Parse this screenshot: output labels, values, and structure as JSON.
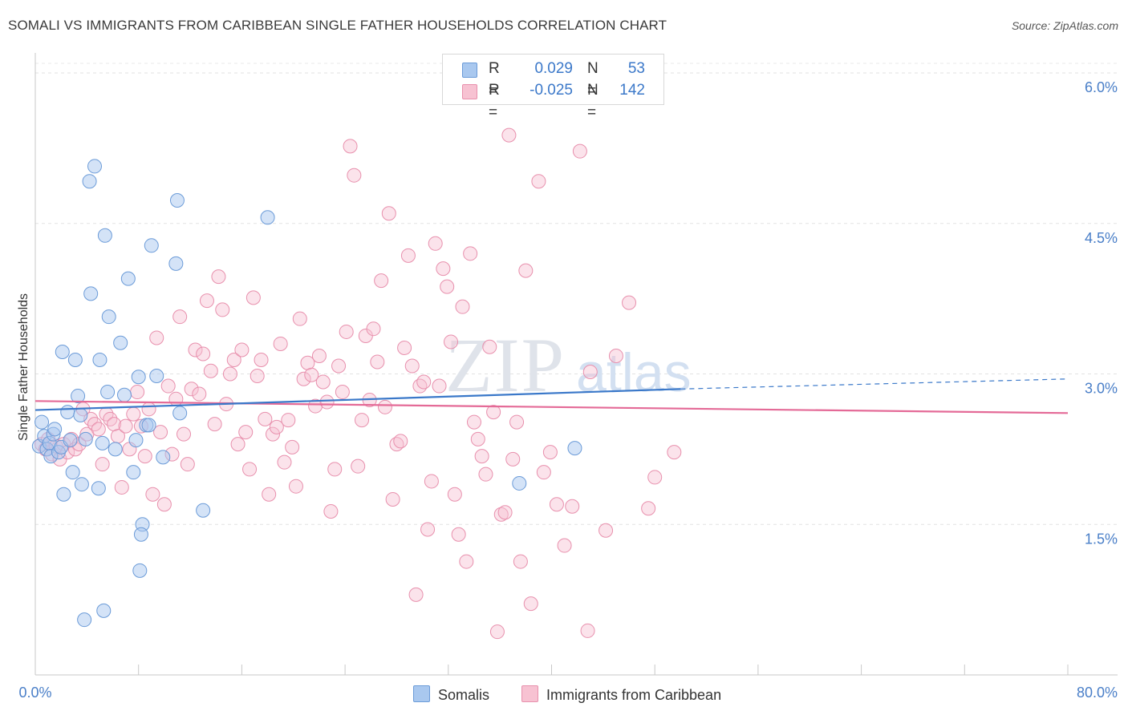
{
  "title": "SOMALI VS IMMIGRANTS FROM CARIBBEAN SINGLE FATHER HOUSEHOLDS CORRELATION CHART",
  "source": "Source: ZipAtlas.com",
  "watermark": {
    "zip": "ZIP",
    "atlas": "atlas"
  },
  "stats": [
    {
      "r_label": "R =",
      "r_value": "0.029",
      "n_label": "N =",
      "n_value": "53"
    },
    {
      "r_label": "R =",
      "r_value": "-0.025",
      "n_label": "N =",
      "n_value": "142"
    }
  ],
  "legend": {
    "series1": "Somalis",
    "series2": "Immigrants from Caribbean"
  },
  "chart_data": {
    "type": "scatter",
    "title": "SOMALI VS IMMIGRANTS FROM CARIBBEAN SINGLE FATHER HOUSEHOLDS CORRELATION CHART",
    "xlabel": "",
    "ylabel": "Single Father Households",
    "xlim": [
      0,
      80
    ],
    "ylim": [
      0,
      6.2
    ],
    "x_tick_labels": [
      "0.0%",
      "80.0%"
    ],
    "y_ticks": [
      1.5,
      3.0,
      4.5,
      6.0
    ],
    "y_tick_labels": [
      "1.5%",
      "3.0%",
      "4.5%",
      "6.0%"
    ],
    "grid": true,
    "legend_position": "bottom-center",
    "colors": {
      "somalis_fill": "#a9c8ef",
      "somalis_stroke": "#6b9bd8",
      "somalis_line": "#3a78c9",
      "carib_fill": "#f7c2d2",
      "carib_stroke": "#e890ad",
      "carib_line": "#e46a97",
      "axis_label_color": "#4a7fc8"
    },
    "series": [
      {
        "name": "Somalis",
        "trend": {
          "x": [
            0,
            50
          ],
          "y": [
            2.64,
            2.85
          ],
          "dashed_extension_to_x": 80,
          "dashed_end_y": 2.95
        },
        "points": [
          [
            0.3,
            2.28
          ],
          [
            0.5,
            2.52
          ],
          [
            0.7,
            2.38
          ],
          [
            0.9,
            2.25
          ],
          [
            1.1,
            2.31
          ],
          [
            1.2,
            2.18
          ],
          [
            1.4,
            2.4
          ],
          [
            1.5,
            2.45
          ],
          [
            1.8,
            2.22
          ],
          [
            2.0,
            2.27
          ],
          [
            2.1,
            3.22
          ],
          [
            2.2,
            1.8
          ],
          [
            2.5,
            2.62
          ],
          [
            2.7,
            2.34
          ],
          [
            2.9,
            2.02
          ],
          [
            3.1,
            3.14
          ],
          [
            3.3,
            2.78
          ],
          [
            3.5,
            2.59
          ],
          [
            3.6,
            1.9
          ],
          [
            3.9,
            2.35
          ],
          [
            4.2,
            4.92
          ],
          [
            4.3,
            3.8
          ],
          [
            4.6,
            5.07
          ],
          [
            4.9,
            1.86
          ],
          [
            5.0,
            3.14
          ],
          [
            5.2,
            2.31
          ],
          [
            5.4,
            4.38
          ],
          [
            5.6,
            2.82
          ],
          [
            5.7,
            3.57
          ],
          [
            6.2,
            2.25
          ],
          [
            6.6,
            3.31
          ],
          [
            6.9,
            2.79
          ],
          [
            7.2,
            3.95
          ],
          [
            7.6,
            2.02
          ],
          [
            7.8,
            2.34
          ],
          [
            8.0,
            2.97
          ],
          [
            8.3,
            1.5
          ],
          [
            8.6,
            2.49
          ],
          [
            8.8,
            2.49
          ],
          [
            9.0,
            4.28
          ],
          [
            9.4,
            2.98
          ],
          [
            9.9,
            2.17
          ],
          [
            10.9,
            4.1
          ],
          [
            11.0,
            4.73
          ],
          [
            11.2,
            2.61
          ],
          [
            13.0,
            1.64
          ],
          [
            18.0,
            4.56
          ],
          [
            37.5,
            1.91
          ],
          [
            41.8,
            2.26
          ],
          [
            3.8,
            0.55
          ],
          [
            5.3,
            0.64
          ],
          [
            8.2,
            1.4
          ],
          [
            8.1,
            1.04
          ]
        ]
      },
      {
        "name": "Immigrants from Caribbean",
        "trend": {
          "x": [
            0,
            80
          ],
          "y": [
            2.73,
            2.61
          ]
        },
        "points": [
          [
            0.5,
            2.3
          ],
          [
            0.8,
            2.25
          ],
          [
            1.0,
            2.35
          ],
          [
            1.3,
            2.2
          ],
          [
            1.6,
            2.28
          ],
          [
            1.9,
            2.15
          ],
          [
            2.2,
            2.3
          ],
          [
            2.5,
            2.22
          ],
          [
            2.8,
            2.35
          ],
          [
            3.1,
            2.25
          ],
          [
            3.4,
            2.3
          ],
          [
            3.7,
            2.65
          ],
          [
            4.0,
            2.4
          ],
          [
            4.3,
            2.55
          ],
          [
            4.6,
            2.5
          ],
          [
            4.9,
            2.45
          ],
          [
            5.2,
            2.1
          ],
          [
            5.5,
            2.6
          ],
          [
            5.8,
            2.55
          ],
          [
            6.1,
            2.5
          ],
          [
            6.4,
            2.38
          ],
          [
            6.7,
            1.87
          ],
          [
            7.0,
            2.48
          ],
          [
            7.3,
            2.25
          ],
          [
            7.6,
            2.6
          ],
          [
            7.9,
            2.82
          ],
          [
            8.2,
            2.48
          ],
          [
            8.5,
            2.18
          ],
          [
            8.8,
            2.65
          ],
          [
            9.1,
            1.8
          ],
          [
            9.4,
            3.36
          ],
          [
            9.7,
            2.42
          ],
          [
            10.0,
            1.7
          ],
          [
            10.3,
            2.88
          ],
          [
            10.6,
            2.2
          ],
          [
            10.9,
            2.75
          ],
          [
            11.2,
            3.57
          ],
          [
            11.5,
            2.4
          ],
          [
            11.8,
            2.1
          ],
          [
            12.1,
            2.85
          ],
          [
            12.4,
            3.24
          ],
          [
            12.7,
            2.8
          ],
          [
            13.0,
            3.2
          ],
          [
            13.3,
            3.73
          ],
          [
            13.6,
            3.03
          ],
          [
            13.9,
            2.5
          ],
          [
            14.2,
            3.97
          ],
          [
            14.5,
            3.64
          ],
          [
            14.8,
            2.7
          ],
          [
            15.1,
            3.0
          ],
          [
            15.4,
            3.14
          ],
          [
            15.7,
            2.3
          ],
          [
            16.0,
            3.24
          ],
          [
            16.3,
            2.42
          ],
          [
            16.6,
            2.05
          ],
          [
            16.9,
            3.76
          ],
          [
            17.2,
            2.98
          ],
          [
            17.5,
            3.14
          ],
          [
            17.8,
            2.55
          ],
          [
            18.1,
            1.8
          ],
          [
            18.4,
            2.4
          ],
          [
            18.7,
            2.47
          ],
          [
            19.0,
            3.3
          ],
          [
            19.3,
            2.12
          ],
          [
            19.6,
            2.54
          ],
          [
            19.9,
            2.27
          ],
          [
            20.2,
            1.88
          ],
          [
            20.5,
            3.55
          ],
          [
            20.8,
            2.95
          ],
          [
            21.1,
            3.11
          ],
          [
            21.4,
            2.99
          ],
          [
            21.7,
            2.68
          ],
          [
            22.0,
            3.18
          ],
          [
            22.3,
            2.92
          ],
          [
            22.6,
            2.72
          ],
          [
            22.9,
            1.63
          ],
          [
            23.2,
            2.05
          ],
          [
            23.5,
            3.08
          ],
          [
            23.8,
            2.82
          ],
          [
            24.1,
            3.42
          ],
          [
            24.4,
            5.27
          ],
          [
            24.7,
            4.98
          ],
          [
            25.0,
            2.08
          ],
          [
            25.3,
            2.54
          ],
          [
            25.6,
            3.38
          ],
          [
            25.9,
            2.74
          ],
          [
            26.2,
            3.45
          ],
          [
            26.5,
            3.12
          ],
          [
            26.8,
            3.93
          ],
          [
            27.1,
            2.67
          ],
          [
            27.4,
            4.6
          ],
          [
            27.7,
            1.75
          ],
          [
            28.0,
            2.3
          ],
          [
            28.3,
            2.33
          ],
          [
            28.6,
            3.26
          ],
          [
            28.9,
            4.18
          ],
          [
            29.2,
            3.08
          ],
          [
            29.5,
            0.8
          ],
          [
            29.8,
            2.88
          ],
          [
            30.1,
            2.92
          ],
          [
            30.4,
            1.45
          ],
          [
            30.7,
            1.93
          ],
          [
            31.0,
            4.3
          ],
          [
            31.3,
            2.88
          ],
          [
            31.6,
            4.05
          ],
          [
            31.9,
            3.87
          ],
          [
            32.2,
            3.32
          ],
          [
            32.5,
            1.8
          ],
          [
            32.8,
            1.4
          ],
          [
            33.1,
            3.67
          ],
          [
            33.4,
            1.13
          ],
          [
            33.7,
            4.2
          ],
          [
            34.0,
            2.52
          ],
          [
            34.3,
            2.35
          ],
          [
            34.6,
            2.18
          ],
          [
            34.9,
            2.0
          ],
          [
            35.2,
            3.27
          ],
          [
            35.5,
            2.62
          ],
          [
            35.8,
            0.43
          ],
          [
            36.1,
            1.6
          ],
          [
            36.4,
            1.62
          ],
          [
            36.7,
            5.38
          ],
          [
            37.0,
            2.15
          ],
          [
            37.3,
            2.52
          ],
          [
            37.6,
            1.13
          ],
          [
            38.0,
            4.03
          ],
          [
            38.4,
            0.71
          ],
          [
            39.0,
            4.92
          ],
          [
            39.4,
            2.02
          ],
          [
            39.9,
            2.22
          ],
          [
            40.4,
            1.7
          ],
          [
            41.0,
            1.29
          ],
          [
            41.6,
            1.68
          ],
          [
            42.2,
            5.22
          ],
          [
            42.8,
            0.44
          ],
          [
            43.0,
            3.02
          ],
          [
            44.2,
            1.44
          ],
          [
            45.0,
            3.18
          ],
          [
            46.0,
            3.71
          ],
          [
            47.5,
            1.66
          ],
          [
            48.0,
            1.97
          ],
          [
            49.5,
            2.22
          ]
        ]
      }
    ]
  }
}
